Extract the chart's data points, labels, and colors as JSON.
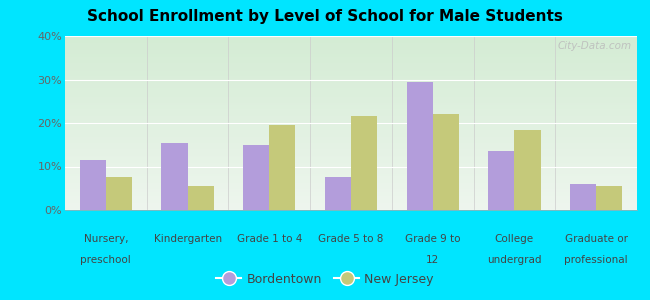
{
  "title": "School Enrollment by Level of School for Male Students",
  "categories": [
    "Nursery,\npreschool",
    "Kindergarten",
    "Grade 1 to 4",
    "Grade 5 to 8",
    "Grade 9 to\n12",
    "College\nundergrad",
    "Graduate or\nprofessional"
  ],
  "bordentown": [
    11.5,
    15.5,
    15.0,
    7.5,
    29.5,
    13.5,
    6.0
  ],
  "new_jersey": [
    7.5,
    5.5,
    19.5,
    21.5,
    22.0,
    18.5,
    5.5
  ],
  "bordentown_color": "#b39ddb",
  "new_jersey_color": "#c5c97a",
  "background_outer": "#00e5ff",
  "ylim": [
    0,
    40
  ],
  "yticks": [
    0,
    10,
    20,
    30,
    40
  ],
  "bar_width": 0.32,
  "legend_labels": [
    "Bordentown",
    "New Jersey"
  ],
  "watermark": "City-Data.com"
}
